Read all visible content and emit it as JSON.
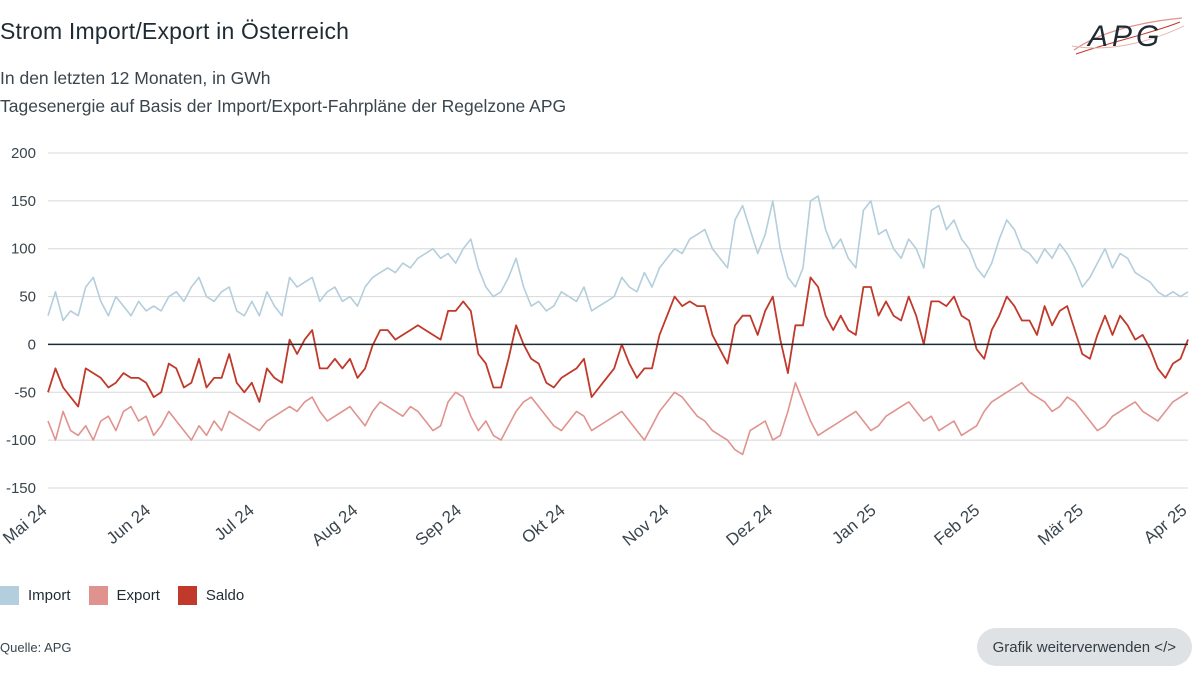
{
  "title": "Strom Import/Export in Österreich",
  "subtitle_1": "In den letzten 12 Monaten, in GWh",
  "subtitle_2": "Tagesenergie auf Basis der Import/Export-Fahrpläne der Regelzone APG",
  "logo_text": "APG",
  "source": "Quelle: APG",
  "reuse_button": "Grafik weiterverwenden </>",
  "colors": {
    "import": "#b3cedc",
    "export": "#e0938e",
    "saldo": "#c0392b",
    "zero": "#1f2b33",
    "grid": "#d8d8d8"
  },
  "chart_data": {
    "type": "line",
    "title": "Strom Import/Export in Österreich",
    "ylim": [
      -150,
      200
    ],
    "yticks": [
      200,
      150,
      100,
      50,
      0,
      -50,
      -100,
      -150
    ],
    "ytick_labels": [
      "200",
      "150",
      "100",
      "50",
      "0",
      "-50",
      "-100",
      "-150"
    ],
    "xlabels": [
      "Mai 24",
      "Jun 24",
      "Jul 24",
      "Aug 24",
      "Sep 24",
      "Okt 24",
      "Nov 24",
      "Dez 24",
      "Jan 25",
      "Feb 25",
      "Mär 25",
      "Apr 25"
    ],
    "x_unit": "month",
    "legend_position": "bottom-left",
    "series": [
      {
        "name": "Import",
        "color": "#b3cedc",
        "values": [
          30,
          55,
          25,
          35,
          30,
          60,
          70,
          45,
          30,
          50,
          40,
          30,
          45,
          35,
          40,
          35,
          50,
          55,
          45,
          60,
          70,
          50,
          45,
          55,
          60,
          35,
          30,
          45,
          30,
          55,
          40,
          30,
          70,
          60,
          65,
          70,
          45,
          55,
          60,
          45,
          50,
          40,
          60,
          70,
          75,
          80,
          75,
          85,
          80,
          90,
          95,
          100,
          90,
          95,
          85,
          100,
          110,
          80,
          60,
          50,
          55,
          70,
          90,
          60,
          40,
          45,
          35,
          40,
          55,
          50,
          45,
          60,
          35,
          40,
          45,
          50,
          70,
          60,
          55,
          75,
          60,
          80,
          90,
          100,
          95,
          110,
          115,
          120,
          100,
          90,
          80,
          130,
          145,
          120,
          95,
          115,
          150,
          100,
          70,
          60,
          80,
          150,
          155,
          120,
          100,
          110,
          90,
          80,
          140,
          150,
          115,
          120,
          100,
          90,
          110,
          100,
          80,
          140,
          145,
          120,
          130,
          110,
          100,
          80,
          70,
          85,
          110,
          130,
          120,
          100,
          95,
          85,
          100,
          90,
          105,
          95,
          80,
          60,
          70,
          85,
          100,
          80,
          95,
          90,
          75,
          70,
          65,
          55,
          50,
          55,
          50,
          55
        ]
      },
      {
        "name": "Export",
        "color": "#e0938e",
        "values": [
          -80,
          -100,
          -70,
          -90,
          -95,
          -85,
          -100,
          -80,
          -75,
          -90,
          -70,
          -65,
          -80,
          -75,
          -95,
          -85,
          -70,
          -80,
          -90,
          -100,
          -85,
          -95,
          -80,
          -90,
          -70,
          -75,
          -80,
          -85,
          -90,
          -80,
          -75,
          -70,
          -65,
          -70,
          -60,
          -55,
          -70,
          -80,
          -75,
          -70,
          -65,
          -75,
          -85,
          -70,
          -60,
          -65,
          -70,
          -75,
          -65,
          -70,
          -80,
          -90,
          -85,
          -60,
          -50,
          -55,
          -75,
          -90,
          -80,
          -95,
          -100,
          -85,
          -70,
          -60,
          -55,
          -65,
          -75,
          -85,
          -90,
          -80,
          -70,
          -75,
          -90,
          -85,
          -80,
          -75,
          -70,
          -80,
          -90,
          -100,
          -85,
          -70,
          -60,
          -50,
          -55,
          -65,
          -75,
          -80,
          -90,
          -95,
          -100,
          -110,
          -115,
          -90,
          -85,
          -80,
          -100,
          -95,
          -70,
          -40,
          -60,
          -80,
          -95,
          -90,
          -85,
          -80,
          -75,
          -70,
          -80,
          -90,
          -85,
          -75,
          -70,
          -65,
          -60,
          -70,
          -80,
          -75,
          -90,
          -85,
          -80,
          -95,
          -90,
          -85,
          -70,
          -60,
          -55,
          -50,
          -45,
          -40,
          -50,
          -55,
          -60,
          -70,
          -65,
          -55,
          -60,
          -70,
          -80,
          -90,
          -85,
          -75,
          -70,
          -65,
          -60,
          -70,
          -75,
          -80,
          -70,
          -60,
          -55,
          -50
        ]
      },
      {
        "name": "Saldo",
        "color": "#c0392b",
        "values": [
          -50,
          -25,
          -45,
          -55,
          -65,
          -25,
          -30,
          -35,
          -45,
          -40,
          -30,
          -35,
          -35,
          -40,
          -55,
          -50,
          -20,
          -25,
          -45,
          -40,
          -15,
          -45,
          -35,
          -35,
          -10,
          -40,
          -50,
          -40,
          -60,
          -25,
          -35,
          -40,
          5,
          -10,
          5,
          15,
          -25,
          -25,
          -15,
          -25,
          -15,
          -35,
          -25,
          -1,
          15,
          15,
          5,
          10,
          15,
          20,
          15,
          10,
          5,
          35,
          35,
          45,
          35,
          -10,
          -20,
          -45,
          -45,
          -15,
          20,
          0,
          -15,
          -20,
          -40,
          -45,
          -35,
          -30,
          -25,
          -15,
          -55,
          -45,
          -35,
          -25,
          0,
          -20,
          -35,
          -25,
          -25,
          10,
          30,
          50,
          40,
          45,
          40,
          40,
          10,
          -5,
          -20,
          20,
          30,
          30,
          10,
          35,
          50,
          5,
          -30,
          20,
          20,
          70,
          60,
          30,
          15,
          30,
          15,
          10,
          60,
          60,
          30,
          45,
          30,
          25,
          50,
          30,
          0,
          45,
          45,
          40,
          50,
          30,
          25,
          -5,
          -15,
          15,
          30,
          50,
          40,
          25,
          25,
          10,
          40,
          20,
          35,
          40,
          15,
          -10,
          -15,
          10,
          30,
          10,
          30,
          20,
          5,
          10,
          -5,
          -25,
          -35,
          -20,
          -15,
          5
        ]
      }
    ]
  }
}
